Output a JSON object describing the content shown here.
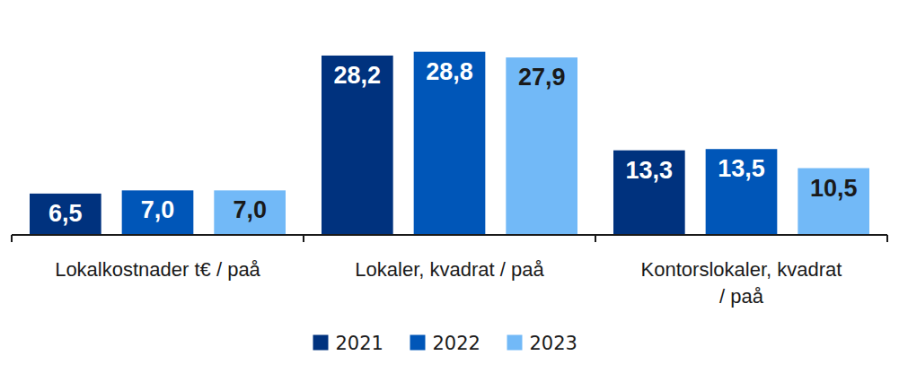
{
  "chart_data": {
    "type": "bar",
    "categories": [
      "Lokalkostnader t€ / paå",
      "Lokaler, kvadrat / paå",
      "Kontorslokaler, kvadrat / paå"
    ],
    "series": [
      {
        "name": "2021",
        "color": "#00327e",
        "values": [
          6.5,
          28.2,
          13.3
        ],
        "value_labels": [
          "6,5",
          "28,2",
          "13,3"
        ]
      },
      {
        "name": "2022",
        "color": "#0056b8",
        "values": [
          7.0,
          28.8,
          13.5
        ],
        "value_labels": [
          "7,0",
          "28,8",
          "13,5"
        ]
      },
      {
        "name": "2023",
        "color": "#72b9f7",
        "values": [
          7.0,
          27.9,
          10.5
        ],
        "value_labels": [
          "7,0",
          "27,9",
          "10,5"
        ]
      }
    ],
    "ylim": [
      0,
      32
    ],
    "data_labels": true,
    "tick_labels": "x",
    "legend": "bottom"
  }
}
